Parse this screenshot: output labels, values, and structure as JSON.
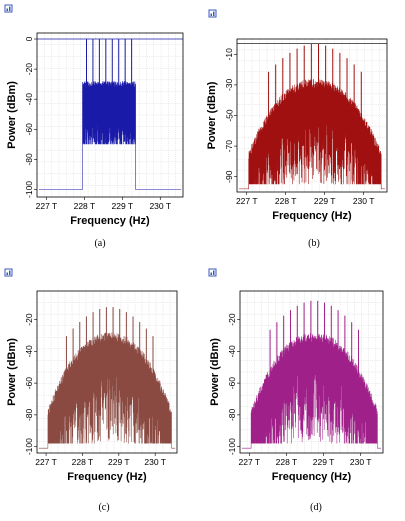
{
  "colors": {
    "a": "#1a1aa8",
    "b": "#a01010",
    "c": "#8a4a42",
    "d": "#a0208a",
    "frame": "#000000",
    "grid": "#c8c8c8",
    "icon": "#3a5ab8"
  },
  "chart_data": [
    {
      "id": "a",
      "type": "line",
      "caption": "(a)",
      "xlabel": "Frequency (Hz)",
      "ylabel": "Power (dBm)",
      "x_ticks": [
        "227 T",
        "228 T",
        "229 T",
        "230 T"
      ],
      "y_ticks": [
        "0",
        "-20",
        "-40",
        "-60",
        "-80",
        "-100"
      ],
      "xlim": [
        226.75,
        230.6
      ],
      "ylim": [
        -105,
        4
      ],
      "grid": true,
      "spectrum": {
        "band": [
          227.95,
          229.35
        ],
        "floor": -100,
        "center_level": -40,
        "edge_level": -40,
        "lines": 8,
        "line_top": 0,
        "ripple_low": -70
      }
    },
    {
      "id": "b",
      "type": "line",
      "caption": "(b)",
      "xlabel": "Frequency (Hz)",
      "ylabel": "Power (dBm)",
      "x_ticks": [
        "227 T",
        "228 T",
        "229 T",
        "230 T"
      ],
      "y_ticks": [
        "-10",
        "-30",
        "-50",
        "-70",
        "-90"
      ],
      "xlim": [
        226.75,
        230.6
      ],
      "ylim": [
        -100,
        0
      ],
      "grid": true,
      "spectrum": {
        "band": [
          227.05,
          230.45
        ],
        "floor": -98,
        "center_level": -38,
        "edge_level": -85,
        "lines": 14,
        "line_top": -3,
        "ripple_low": -95
      }
    },
    {
      "id": "c",
      "type": "line",
      "caption": "(c)",
      "xlabel": "Frequency (Hz)",
      "ylabel": "Power (dBm)",
      "x_ticks": [
        "227 T",
        "228 T",
        "229 T",
        "230 T"
      ],
      "y_ticks": [
        "-20",
        "-40",
        "-60",
        "-80",
        "-100"
      ],
      "xlim": [
        226.75,
        230.6
      ],
      "ylim": [
        -104,
        -2
      ],
      "grid": true,
      "spectrum": {
        "band": [
          227.05,
          230.45
        ],
        "floor": -101,
        "center_level": -40,
        "edge_level": -88,
        "lines": 14,
        "line_top": -12,
        "ripple_low": -98
      }
    },
    {
      "id": "d",
      "type": "line",
      "caption": "(d)",
      "xlabel": "Frequency (Hz)",
      "ylabel": "Power (dBm)",
      "x_ticks": [
        "227 T",
        "228 T",
        "229 T",
        "230 T"
      ],
      "y_ticks": [
        "-20",
        "-40",
        "-60",
        "-80",
        "-100"
      ],
      "xlim": [
        226.75,
        230.6
      ],
      "ylim": [
        -104,
        -2
      ],
      "grid": true,
      "spectrum": {
        "band": [
          227.05,
          230.45
        ],
        "floor": -101,
        "center_level": -40,
        "edge_level": -88,
        "lines": 14,
        "line_top": -8,
        "ripple_low": -98
      }
    }
  ]
}
